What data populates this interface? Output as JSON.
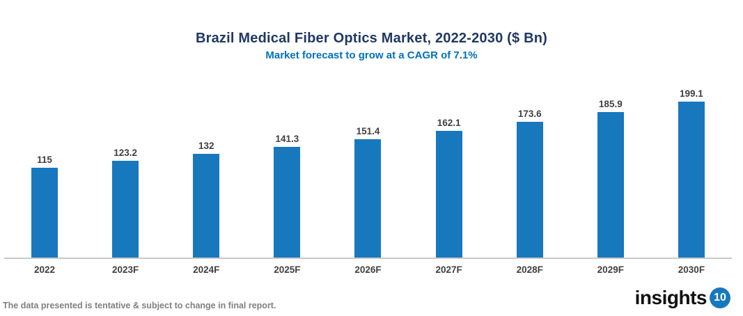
{
  "title": "Brazil Medical Fiber Optics Market, 2022-2030 ($ Bn)",
  "subtitle": "Market forecast to grow at a CAGR of 7.1%",
  "chart_data": {
    "type": "bar",
    "categories": [
      "2022",
      "2023F",
      "2024F",
      "2025F",
      "2026F",
      "2027F",
      "2028F",
      "2029F",
      "2030F"
    ],
    "values": [
      115,
      123.2,
      132,
      141.3,
      151.4,
      162.1,
      173.6,
      185.9,
      199.1
    ],
    "value_labels": [
      "115",
      "123.2",
      "132",
      "141.3",
      "151.4",
      "162.1",
      "173.6",
      "185.9",
      "199.1"
    ],
    "title": "Brazil Medical Fiber Optics Market, 2022-2030 ($ Bn)",
    "xlabel": "",
    "ylabel": "",
    "ylim": [
      0,
      220
    ],
    "grid": false,
    "legend": false,
    "bar_color": "#1878BE"
  },
  "footer": {
    "disclaimer": "The data presented is tentative & subject to change in final report."
  },
  "logo": {
    "text": "insights",
    "badge": "10"
  },
  "colors": {
    "bar": "#1878BE",
    "title": "#1F3864",
    "subtitle": "#0070C0",
    "label": "#404040",
    "axis": "#C9C9C9",
    "footer_text": "#808080",
    "logo_badge": "#1878BE"
  }
}
